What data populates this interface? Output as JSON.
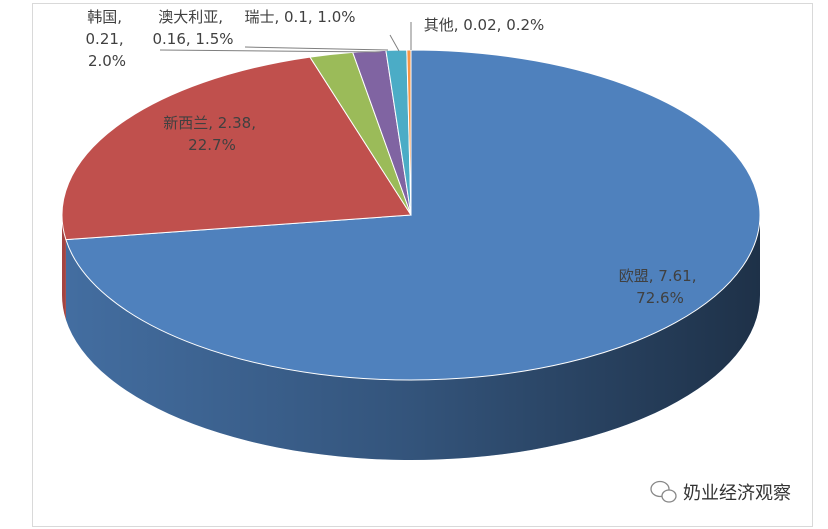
{
  "chart_data": {
    "type": "pie3d",
    "categories": [
      "欧盟",
      "新西兰",
      "韩国",
      "澳大利亚",
      "瑞士",
      "其他"
    ],
    "values": [
      7.61,
      2.38,
      0.21,
      0.16,
      0.1,
      0.02
    ],
    "percent_labels": [
      "72.6%",
      "22.7%",
      "2.0%",
      "1.5%",
      "1.0%",
      "0.2%"
    ],
    "separator": ", ",
    "colors": [
      "#4f81bd",
      "#c0504d",
      "#9bbb59",
      "#8064a2",
      "#4bacc6",
      "#f79646"
    ]
  },
  "watermark": "奶业经济观察"
}
